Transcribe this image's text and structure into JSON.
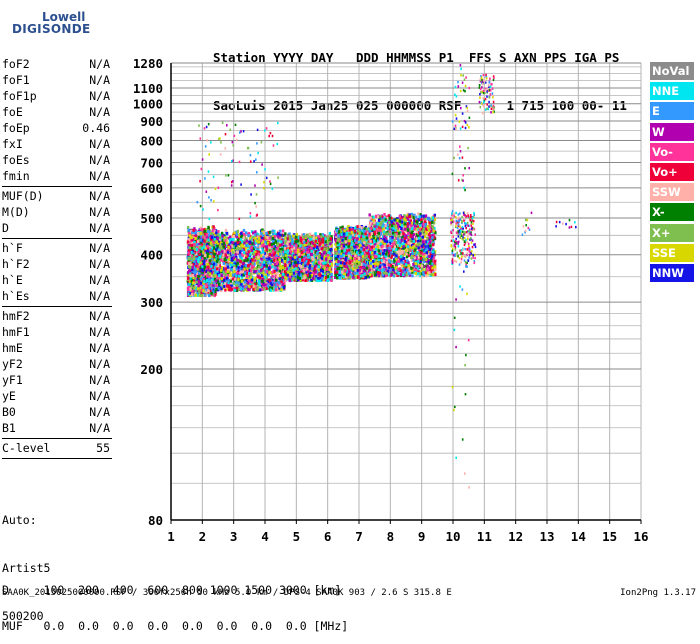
{
  "logo": {
    "line1": "Lowell",
    "line2": "DIGISONDE"
  },
  "header": {
    "line1": "Station YYYY DAY   DDD HHMMSS P1  FFS S AXN PPS IGA PS",
    "line2": "SaoLuis 2015 Jan25 025 000000 RSF      1 715 100 00- 11"
  },
  "params": [
    [
      {
        "name": "foF2",
        "value": "N/A"
      },
      {
        "name": "foF1",
        "value": "N/A"
      },
      {
        "name": "foF1p",
        "value": "N/A"
      },
      {
        "name": "foE",
        "value": "N/A"
      },
      {
        "name": "foEp",
        "value": "0.46"
      },
      {
        "name": "fxI",
        "value": "N/A"
      },
      {
        "name": "foEs",
        "value": "N/A"
      },
      {
        "name": "fmin",
        "value": "N/A"
      }
    ],
    [
      {
        "name": "MUF(D)",
        "value": "N/A"
      },
      {
        "name": "M(D)",
        "value": "N/A"
      },
      {
        "name": "D",
        "value": "N/A"
      }
    ],
    [
      {
        "name": "h`F",
        "value": "N/A"
      },
      {
        "name": "h`F2",
        "value": "N/A"
      },
      {
        "name": "h`E",
        "value": "N/A"
      },
      {
        "name": "h`Es",
        "value": "N/A"
      }
    ],
    [
      {
        "name": "hmF2",
        "value": "N/A"
      },
      {
        "name": "hmF1",
        "value": "N/A"
      },
      {
        "name": "hmE",
        "value": "N/A"
      },
      {
        "name": "yF2",
        "value": "N/A"
      },
      {
        "name": "yF1",
        "value": "N/A"
      },
      {
        "name": "yE",
        "value": "N/A"
      },
      {
        "name": "B0",
        "value": "N/A"
      },
      {
        "name": "B1",
        "value": "N/A"
      }
    ],
    [
      {
        "name": "C-level",
        "value": "55"
      }
    ]
  ],
  "auto": {
    "line1": "Auto:",
    "line2": "Artist5",
    "line3": "500200"
  },
  "legend": [
    {
      "label": "NoVal",
      "color": "#8c8c8c"
    },
    {
      "label": "NNE",
      "color": "#00e6f0"
    },
    {
      "label": "E",
      "color": "#3399ff"
    },
    {
      "label": "W",
      "color": "#b000b0"
    },
    {
      "label": "Vo-",
      "color": "#ff3399"
    },
    {
      "label": "Vo+",
      "color": "#f00038"
    },
    {
      "label": "SSW",
      "color": "#ffb0a8"
    },
    {
      "label": "X-",
      "color": "#008000"
    },
    {
      "label": "X+",
      "color": "#7fbf4f"
    },
    {
      "label": "SSE",
      "color": "#d8d800"
    },
    {
      "label": "NNW",
      "color": "#1414e6"
    }
  ],
  "d_table": {
    "line1": "D     100  200  400  600  800 1000 1500 3000 [km]",
    "line2": "MUF   0.0  0.0  0.0  0.0  0.0  0.0  0.0  0.0 [MHz]"
  },
  "footer": {
    "left": "SAA0K_2015025000000.RSF / 300fx256h 50 kHz 5.0 km / DPS-4 SAA0K 903 / 2.6 S 315.8 E",
    "right": "Ion2Png 1.3.17"
  },
  "chart_data": {
    "type": "scatter",
    "xlabel": "",
    "ylabel": "",
    "xlim": [
      1,
      16
    ],
    "ylim": [
      80,
      1280
    ],
    "x_ticks": [
      1,
      2,
      3,
      4,
      5,
      6,
      7,
      8,
      9,
      10,
      11,
      12,
      13,
      14,
      15,
      16
    ],
    "y_ticks": [
      80,
      200,
      300,
      400,
      500,
      600,
      700,
      800,
      900,
      1000,
      1100,
      1280
    ],
    "y_scale": "log",
    "grid": true,
    "clusters": [
      {
        "x_range": [
          1.5,
          2.4
        ],
        "y_range": [
          315,
          480
        ],
        "density": "high"
      },
      {
        "x_range": [
          2.4,
          4.6
        ],
        "y_range": [
          325,
          470
        ],
        "density": "high"
      },
      {
        "x_range": [
          4.6,
          6.1
        ],
        "y_range": [
          345,
          460
        ],
        "density": "high"
      },
      {
        "x_range": [
          6.2,
          7.3
        ],
        "y_range": [
          350,
          480
        ],
        "density": "high"
      },
      {
        "x_range": [
          7.3,
          9.4
        ],
        "y_range": [
          355,
          520
        ],
        "density": "high"
      },
      {
        "x_range": [
          9.9,
          10.7
        ],
        "y_range": [
          380,
          520
        ],
        "density": "medium"
      },
      {
        "x_range": [
          1.8,
          4.4
        ],
        "y_range": [
          500,
          900
        ],
        "density": "low"
      },
      {
        "x_range": [
          9.95,
          10.5
        ],
        "y_range": [
          90,
          1280
        ],
        "density": "low"
      },
      {
        "x_range": [
          10.8,
          11.3
        ],
        "y_range": [
          950,
          1200
        ],
        "density": "low"
      },
      {
        "x_range": [
          12.1,
          12.5
        ],
        "y_range": [
          450,
          520
        ],
        "density": "sparse"
      },
      {
        "x_range": [
          13.2,
          13.9
        ],
        "y_range": [
          470,
          500
        ],
        "density": "sparse"
      }
    ]
  }
}
